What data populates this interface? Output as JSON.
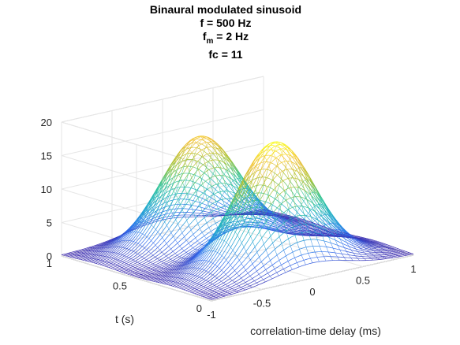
{
  "chart_data": {
    "type": "mesh3d",
    "title_lines": [
      {
        "text": "Binaural modulated sinusoid"
      },
      {
        "text": "f = 500 Hz"
      },
      {
        "text": "f",
        "sub": "m",
        "after": " = 2 Hz"
      },
      {
        "text": "fc = 11"
      }
    ],
    "xlabel": "correlation-time delay (ms)",
    "ylabel": "t (s)",
    "zlabel": "",
    "xlim": [
      -1,
      1
    ],
    "ylim": [
      0,
      1
    ],
    "zlim": [
      0,
      20
    ],
    "xticks": [
      -1,
      -0.5,
      0,
      0.5,
      1
    ],
    "yticks": [
      0,
      0.5,
      1
    ],
    "zticks": [
      0,
      5,
      10,
      15,
      20
    ],
    "grid": true,
    "colormap": [
      "#3e26a8",
      "#2f6ff0",
      "#1ea9cf",
      "#2ec59a",
      "#a8c22f",
      "#f1bf37",
      "#f9fb15"
    ],
    "ridges": [
      {
        "center_t": 0.25,
        "peak": 18.5
      },
      {
        "center_t": 0.75,
        "peak": 16.0
      }
    ],
    "ridge_width_t": 0.12,
    "ridge_width_delay_ms": 0.35
  }
}
